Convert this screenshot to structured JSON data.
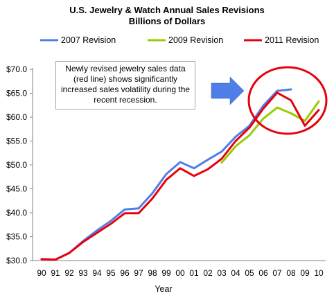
{
  "chart_data": {
    "type": "line",
    "title": "U.S. Jewelry & Watch Annual Sales Revisions",
    "subtitle": "Billions of Dollars",
    "xlabel": "Year",
    "ylabel": "",
    "ylim": [
      30,
      70
    ],
    "yticks": [
      "$30.0",
      "$35.0",
      "$40.0",
      "$45.0",
      "$50.0",
      "$55.0",
      "$60.0",
      "$65.0",
      "$70.0"
    ],
    "categories": [
      "90",
      "91",
      "92",
      "93",
      "94",
      "95",
      "96",
      "97",
      "98",
      "99",
      "00",
      "01",
      "02",
      "03",
      "04",
      "05",
      "06",
      "07",
      "08",
      "09",
      "10"
    ],
    "legend_position": "top",
    "grid": false,
    "series": [
      {
        "name": "2007 Revision",
        "color": "#4f7ee8",
        "values": [
          30.3,
          30.2,
          31.6,
          34.1,
          36.3,
          38.3,
          40.7,
          40.9,
          44.1,
          48.1,
          50.6,
          49.3,
          51.1,
          52.8,
          55.9,
          58.2,
          62.4,
          65.5,
          65.8,
          null,
          null
        ]
      },
      {
        "name": "2009 Revision",
        "color": "#99cc00",
        "values": [
          null,
          null,
          null,
          null,
          null,
          null,
          null,
          null,
          null,
          null,
          null,
          null,
          null,
          50.5,
          53.9,
          56.2,
          59.7,
          62.0,
          60.8,
          59.2,
          63.3
        ]
      },
      {
        "name": "2011 Revision",
        "color": "#e8000b",
        "values": [
          30.3,
          30.2,
          31.6,
          33.9,
          35.8,
          37.7,
          39.9,
          39.9,
          43.0,
          46.9,
          49.3,
          47.7,
          49.1,
          51.3,
          55.0,
          57.8,
          61.8,
          65.1,
          63.5,
          58.2,
          61.5
        ]
      }
    ],
    "annotation": {
      "text": "Newly revised jewelry sales data\n(red line) shows significantly\nincreased sales volatility during the\nrecent recession.",
      "arrow_color": "#4f7ee8",
      "circle_color": "#e8000b"
    }
  }
}
